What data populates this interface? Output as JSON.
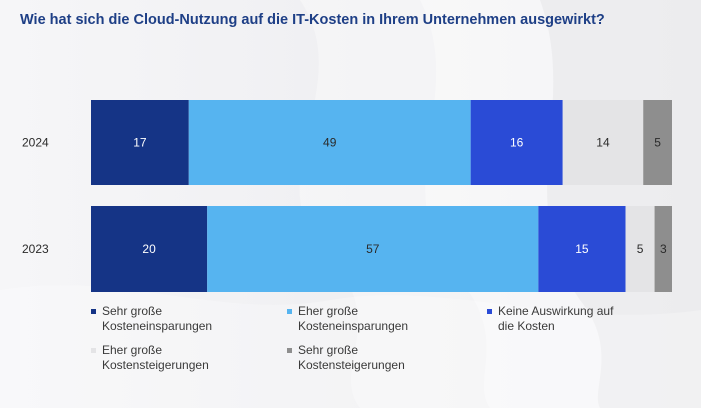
{
  "title": "Wie hat sich die Cloud-Nutzung auf die IT-Kosten in Ihrem Unternehmen ausgewirkt?",
  "colors": {
    "sehr_einsparungen": "#153486",
    "eher_einsparungen": "#56b4f0",
    "keine": "#2a4bd6",
    "eher_steigerungen": "#e4e4e6",
    "sehr_steigerungen": "#8e8e8e"
  },
  "chart_data": {
    "type": "bar",
    "orientation": "horizontal",
    "stacked": true,
    "categories": [
      "2024",
      "2023"
    ],
    "series": [
      {
        "name": "Sehr große Kosteneinsparungen",
        "values": [
          17,
          20
        ]
      },
      {
        "name": "Eher große Kosteneinsparungen",
        "values": [
          49,
          57
        ]
      },
      {
        "name": "Keine Auswirkung auf die Kosten",
        "values": [
          16,
          15
        ]
      },
      {
        "name": "Eher große Kostensteigerungen",
        "values": [
          14,
          5
        ]
      },
      {
        "name": "Sehr große Kostensteigerungen",
        "values": [
          5,
          3
        ]
      }
    ],
    "legend_position": "bottom"
  },
  "legend": [
    {
      "line1": "Sehr große",
      "line2": "Kosteneinsparungen"
    },
    {
      "line1": "Eher große",
      "line2": "Kosteneinsparungen"
    },
    {
      "line1": "Keine Auswirkung auf",
      "line2": "die Kosten"
    },
    {
      "line1": "Eher große",
      "line2": "Kostensteigerungen"
    },
    {
      "line1": "Sehr große",
      "line2": "Kostensteigerungen"
    }
  ]
}
